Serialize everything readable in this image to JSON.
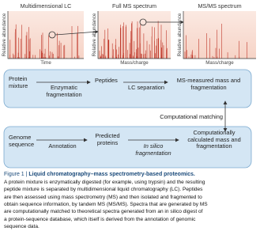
{
  "figure": {
    "panels": [
      {
        "title": "Multidimensional LC",
        "y_label": "Relative abundance",
        "x_label": "Time"
      },
      {
        "title": "Full MS spectrum",
        "y_label": "Relative abundance",
        "x_label": "Mass/charge"
      },
      {
        "title": "MS/MS spectrum",
        "y_label": "Relative abundance",
        "x_label": "Mass/charge"
      }
    ],
    "top_flow": [
      "Protein mixture",
      "Enzymatic fragmentation",
      "Peptides",
      "LC separation",
      "MS-measured mass and fragmentation"
    ],
    "matching": "Computational matching",
    "bottom_flow": [
      "Genome sequence",
      "Annotation",
      "Predicted proteins",
      "In silico fragmentation",
      "Computationally calculated mass and fragmentation"
    ],
    "caption": {
      "label": "Figure 1 |",
      "title": "Liquid chromatography–mass spectrometry-based proteomics.",
      "lines": [
        "A protein mixture is enzymatically digested (for example, using trypsin) and the resulting",
        "peptide mixture is separated by multidimensional liquid chromatography (LC). Peptides",
        "are then assessed using mass spectrometry (MS) and then isolated and fragmented to",
        "obtain sequence information, by tandem MS (MS/MS). Spectra that are generated by MS",
        "are computationally matched to theoretical spectra generated from an in silico digest of",
        "a protein-sequence database, which itself is derived from the annotation of genomic",
        "sequence data."
      ]
    }
  }
}
